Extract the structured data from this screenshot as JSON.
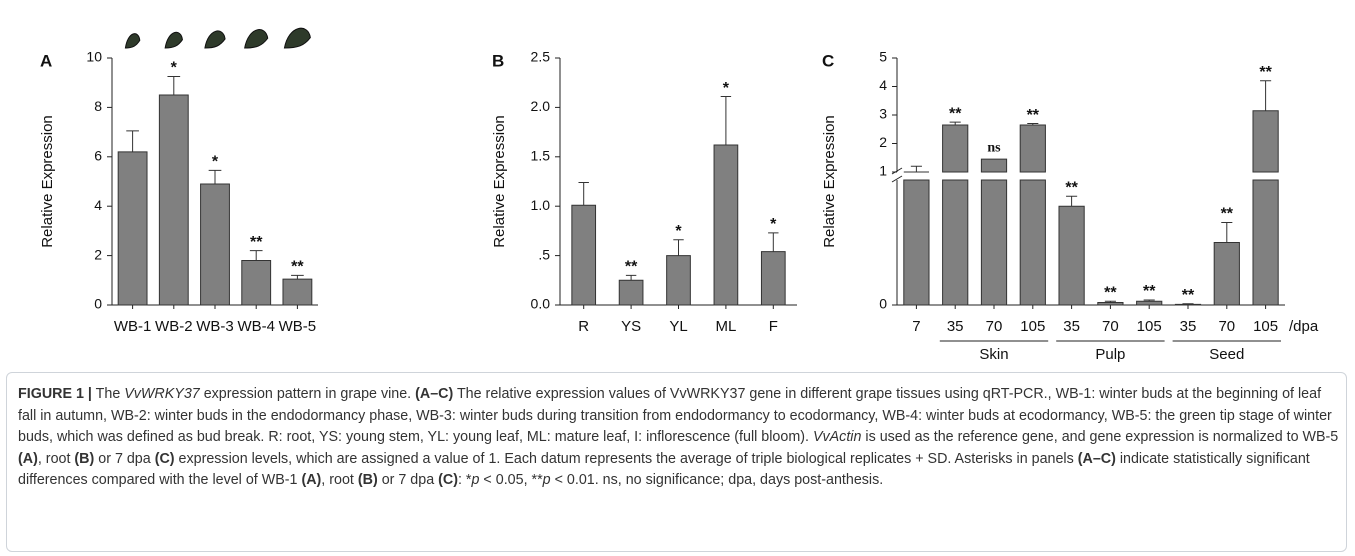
{
  "chart_data": [
    {
      "type": "bar",
      "panel": "A",
      "y_label": "Relative Expression",
      "color": "#808080",
      "categories": [
        "WB-1",
        "WB-2",
        "WB-3",
        "WB-4",
        "WB-5"
      ],
      "values": [
        6.2,
        8.5,
        4.9,
        1.8,
        1.05
      ],
      "errors": [
        0.85,
        0.75,
        0.55,
        0.4,
        0.15
      ],
      "annotations": [
        null,
        "*",
        "*",
        "**",
        "**"
      ],
      "ylim": [
        0,
        10
      ],
      "yticks": [
        0,
        2,
        4,
        6,
        8,
        10
      ]
    },
    {
      "type": "bar",
      "panel": "B",
      "y_label": "Relative Expression",
      "color": "#808080",
      "categories": [
        "R",
        "YS",
        "YL",
        "ML",
        "F"
      ],
      "values": [
        1.01,
        0.25,
        0.5,
        1.62,
        0.54
      ],
      "errors": [
        0.23,
        0.05,
        0.16,
        0.49,
        0.19
      ],
      "annotations": [
        null,
        "**",
        "*",
        "*",
        "*"
      ],
      "ylim": [
        0,
        2.5
      ],
      "yticks": [
        {
          "value": 0,
          "label": "0.0"
        },
        {
          "value": 0.5,
          "label": ".5"
        },
        {
          "value": 1,
          "label": "1.0"
        },
        1.5,
        {
          "value": 2,
          "label": "2.0"
        },
        2.5
      ]
    },
    {
      "type": "bar",
      "panel": "C",
      "y_label": "Relative Expression",
      "color": "#808080",
      "categories": [
        "7",
        "35",
        "70",
        "105",
        "35",
        "70",
        "105",
        "35",
        "70",
        "105"
      ],
      "category_groups": [
        null,
        "Skin",
        "Skin",
        "Skin",
        "Pulp",
        "Pulp",
        "Pulp",
        "Seed",
        "Seed",
        "Seed"
      ],
      "x_unit": "/dpa",
      "values": [
        1.0,
        2.65,
        1.45,
        2.65,
        0.79,
        0.02,
        0.03,
        0.005,
        0.5,
        3.15
      ],
      "errors": [
        0.2,
        0.1,
        null,
        0.05,
        0.08,
        0.01,
        0.01,
        0.005,
        0.16,
        1.05
      ],
      "annotations": [
        null,
        "**",
        "ns",
        "**",
        "**",
        "**",
        "**",
        "**",
        "**",
        "**"
      ],
      "ylim": [
        0,
        5
      ],
      "ybreak": 1,
      "yticks": [
        0,
        1,
        2,
        3,
        4,
        5
      ]
    }
  ],
  "caption": [
    "FIGURE 1 |",
    " The ",
    "VvWRKY37",
    " expression pattern in grape vine. ",
    "(A–C)",
    " The relative expression values of VvWRKY37 gene in different grape tissues using qRT-PCR., WB-1: winter buds at the beginning of leaf fall in autumn, WB-2: winter buds in the endodormancy phase, WB-3: winter buds during transition from endodormancy to ecodormancy, WB-4: winter buds at ecodormancy, WB-5: the green tip stage of winter buds, which was defined as bud break. R: root, YS: young stem, YL: young leaf, ML: mature leaf, I: inflorescence (full bloom). ",
    "VvActin",
    " is used as the reference gene, and gene expression is normalized to WB-5 ",
    "(A)",
    ", root ",
    "(B)",
    " or 7 dpa ",
    "(C)",
    " expression levels, which are assigned a value of 1. Each datum represents the average of triple biological replicates + SD. Asterisks in panels ",
    "(A–C)",
    " indicate statistically significant differences compared with the level of WB-1 ",
    "(A)",
    ", root ",
    "(B)",
    " or 7 dpa ",
    "(C)",
    ": *",
    "p",
    " < 0.05, **",
    "p",
    " < 0.01. ns, no significance; dpa, days post-anthesis."
  ]
}
